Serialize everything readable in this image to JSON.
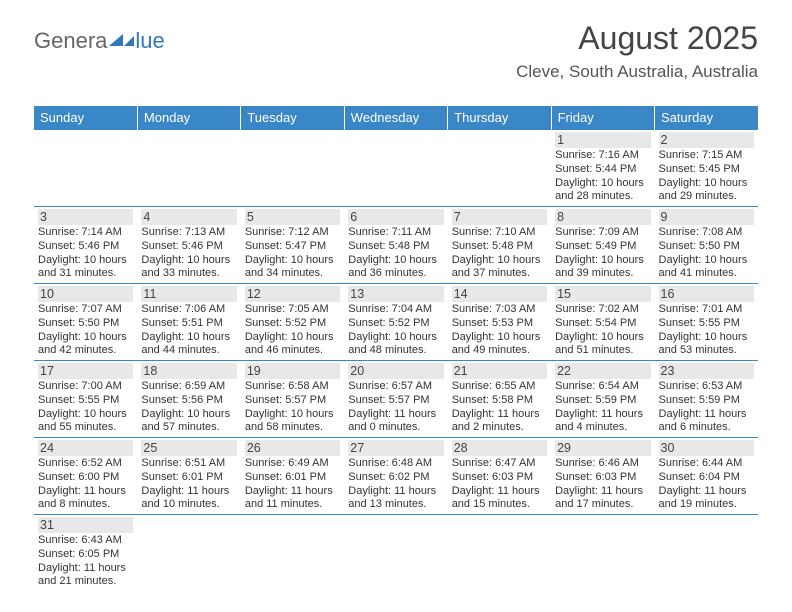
{
  "logo": {
    "part1": "Genera",
    "part2": "lue"
  },
  "header": {
    "title": "August 2025",
    "location": "Cleve, South Australia, Australia"
  },
  "styles": {
    "header_bg": "#3a87c8",
    "header_fg": "#ffffff",
    "daynum_bg": "#e8e8e8",
    "border_color": "#3a87c8",
    "text_color": "#333333"
  },
  "weekdays": [
    "Sunday",
    "Monday",
    "Tuesday",
    "Wednesday",
    "Thursday",
    "Friday",
    "Saturday"
  ],
  "weeks": [
    [
      null,
      null,
      null,
      null,
      null,
      {
        "n": "1",
        "sunrise": "7:16 AM",
        "sunset": "5:44 PM",
        "dl": "10 hours and 28 minutes."
      },
      {
        "n": "2",
        "sunrise": "7:15 AM",
        "sunset": "5:45 PM",
        "dl": "10 hours and 29 minutes."
      }
    ],
    [
      {
        "n": "3",
        "sunrise": "7:14 AM",
        "sunset": "5:46 PM",
        "dl": "10 hours and 31 minutes."
      },
      {
        "n": "4",
        "sunrise": "7:13 AM",
        "sunset": "5:46 PM",
        "dl": "10 hours and 33 minutes."
      },
      {
        "n": "5",
        "sunrise": "7:12 AM",
        "sunset": "5:47 PM",
        "dl": "10 hours and 34 minutes."
      },
      {
        "n": "6",
        "sunrise": "7:11 AM",
        "sunset": "5:48 PM",
        "dl": "10 hours and 36 minutes."
      },
      {
        "n": "7",
        "sunrise": "7:10 AM",
        "sunset": "5:48 PM",
        "dl": "10 hours and 37 minutes."
      },
      {
        "n": "8",
        "sunrise": "7:09 AM",
        "sunset": "5:49 PM",
        "dl": "10 hours and 39 minutes."
      },
      {
        "n": "9",
        "sunrise": "7:08 AM",
        "sunset": "5:50 PM",
        "dl": "10 hours and 41 minutes."
      }
    ],
    [
      {
        "n": "10",
        "sunrise": "7:07 AM",
        "sunset": "5:50 PM",
        "dl": "10 hours and 42 minutes."
      },
      {
        "n": "11",
        "sunrise": "7:06 AM",
        "sunset": "5:51 PM",
        "dl": "10 hours and 44 minutes."
      },
      {
        "n": "12",
        "sunrise": "7:05 AM",
        "sunset": "5:52 PM",
        "dl": "10 hours and 46 minutes."
      },
      {
        "n": "13",
        "sunrise": "7:04 AM",
        "sunset": "5:52 PM",
        "dl": "10 hours and 48 minutes."
      },
      {
        "n": "14",
        "sunrise": "7:03 AM",
        "sunset": "5:53 PM",
        "dl": "10 hours and 49 minutes."
      },
      {
        "n": "15",
        "sunrise": "7:02 AM",
        "sunset": "5:54 PM",
        "dl": "10 hours and 51 minutes."
      },
      {
        "n": "16",
        "sunrise": "7:01 AM",
        "sunset": "5:55 PM",
        "dl": "10 hours and 53 minutes."
      }
    ],
    [
      {
        "n": "17",
        "sunrise": "7:00 AM",
        "sunset": "5:55 PM",
        "dl": "10 hours and 55 minutes."
      },
      {
        "n": "18",
        "sunrise": "6:59 AM",
        "sunset": "5:56 PM",
        "dl": "10 hours and 57 minutes."
      },
      {
        "n": "19",
        "sunrise": "6:58 AM",
        "sunset": "5:57 PM",
        "dl": "10 hours and 58 minutes."
      },
      {
        "n": "20",
        "sunrise": "6:57 AM",
        "sunset": "5:57 PM",
        "dl": "11 hours and 0 minutes."
      },
      {
        "n": "21",
        "sunrise": "6:55 AM",
        "sunset": "5:58 PM",
        "dl": "11 hours and 2 minutes."
      },
      {
        "n": "22",
        "sunrise": "6:54 AM",
        "sunset": "5:59 PM",
        "dl": "11 hours and 4 minutes."
      },
      {
        "n": "23",
        "sunrise": "6:53 AM",
        "sunset": "5:59 PM",
        "dl": "11 hours and 6 minutes."
      }
    ],
    [
      {
        "n": "24",
        "sunrise": "6:52 AM",
        "sunset": "6:00 PM",
        "dl": "11 hours and 8 minutes."
      },
      {
        "n": "25",
        "sunrise": "6:51 AM",
        "sunset": "6:01 PM",
        "dl": "11 hours and 10 minutes."
      },
      {
        "n": "26",
        "sunrise": "6:49 AM",
        "sunset": "6:01 PM",
        "dl": "11 hours and 11 minutes."
      },
      {
        "n": "27",
        "sunrise": "6:48 AM",
        "sunset": "6:02 PM",
        "dl": "11 hours and 13 minutes."
      },
      {
        "n": "28",
        "sunrise": "6:47 AM",
        "sunset": "6:03 PM",
        "dl": "11 hours and 15 minutes."
      },
      {
        "n": "29",
        "sunrise": "6:46 AM",
        "sunset": "6:03 PM",
        "dl": "11 hours and 17 minutes."
      },
      {
        "n": "30",
        "sunrise": "6:44 AM",
        "sunset": "6:04 PM",
        "dl": "11 hours and 19 minutes."
      }
    ],
    [
      {
        "n": "31",
        "sunrise": "6:43 AM",
        "sunset": "6:05 PM",
        "dl": "11 hours and 21 minutes."
      },
      null,
      null,
      null,
      null,
      null,
      null
    ]
  ],
  "labels": {
    "sunrise": "Sunrise:",
    "sunset": "Sunset:",
    "daylight": "Daylight:"
  }
}
